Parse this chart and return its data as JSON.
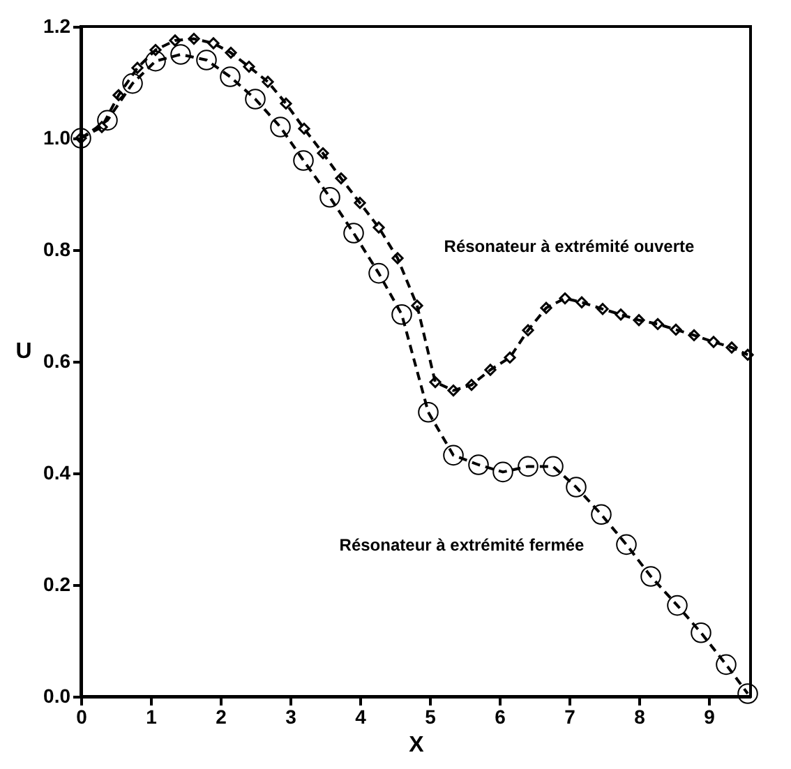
{
  "chart_data": {
    "type": "line",
    "xlabel": "X",
    "ylabel": "U",
    "xlim": [
      0,
      9.6
    ],
    "ylim": [
      0,
      1.2
    ],
    "xticks": [
      0,
      1,
      2,
      3,
      4,
      5,
      6,
      7,
      8,
      9
    ],
    "yticks": [
      {
        "value": 0,
        "label": "0.0"
      },
      0.2,
      0.4,
      0.6,
      0.8,
      {
        "value": 1,
        "label": "1.0"
      },
      1.2
    ],
    "grid": false,
    "line_style": "dashed",
    "series": [
      {
        "name": "Résonateur à extrémité ouverte",
        "color": "#000000",
        "marker": "diamond",
        "x": [
          0,
          0.3,
          0.54,
          0.81,
          1.07,
          1.35,
          1.62,
          1.9,
          2.15,
          2.41,
          2.68,
          2.94,
          3.2,
          3.47,
          3.73,
          4.0,
          4.27,
          4.54,
          4.82,
          5.08,
          5.34,
          5.6,
          5.87,
          6.15,
          6.41,
          6.67,
          6.94,
          7.18,
          7.48,
          7.74,
          8.0,
          8.27,
          8.53,
          8.79,
          9.07,
          9.33,
          9.56
        ],
        "values": [
          1.0,
          1.02,
          1.077,
          1.126,
          1.158,
          1.175,
          1.178,
          1.17,
          1.153,
          1.128,
          1.101,
          1.062,
          1.017,
          0.973,
          0.928,
          0.884,
          0.84,
          0.785,
          0.7,
          0.563,
          0.548,
          0.558,
          0.585,
          0.607,
          0.656,
          0.696,
          0.713,
          0.706,
          0.694,
          0.684,
          0.674,
          0.667,
          0.657,
          0.647,
          0.635,
          0.625,
          0.612
        ]
      },
      {
        "name": "Résonateur à extrémité fermée",
        "color": "#000000",
        "marker": "circle",
        "x": [
          0,
          0.38,
          0.74,
          1.07,
          1.43,
          1.8,
          2.14,
          2.5,
          2.86,
          3.19,
          3.57,
          3.91,
          4.27,
          4.6,
          4.98,
          5.34,
          5.7,
          6.05,
          6.41,
          6.77,
          7.1,
          7.46,
          7.82,
          8.17,
          8.55,
          8.89,
          9.25,
          9.56
        ],
        "values": [
          1.0,
          1.032,
          1.098,
          1.138,
          1.15,
          1.14,
          1.11,
          1.07,
          1.02,
          0.96,
          0.894,
          0.83,
          0.758,
          0.684,
          0.509,
          0.432,
          0.415,
          0.402,
          0.412,
          0.412,
          0.375,
          0.326,
          0.272,
          0.215,
          0.163,
          0.114,
          0.057,
          0.005
        ]
      }
    ]
  }
}
